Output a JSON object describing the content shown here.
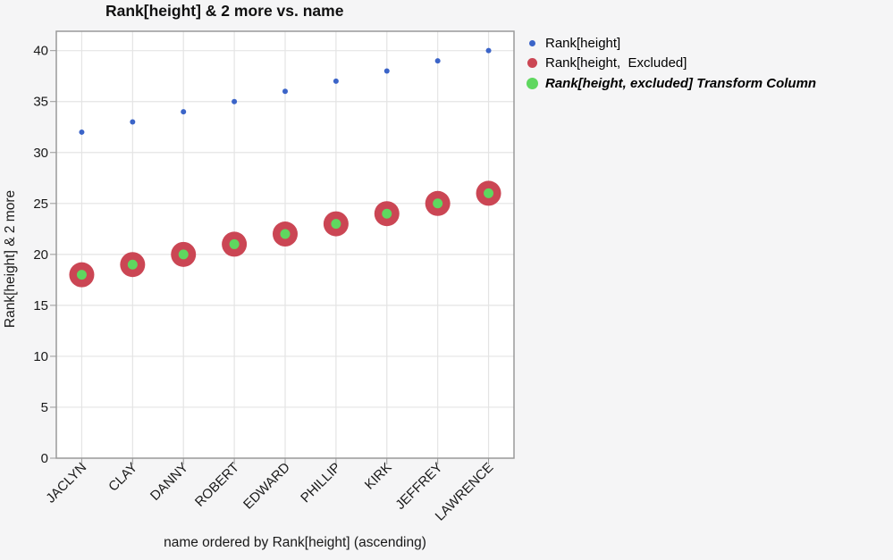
{
  "title": "Rank[height] & 2 more vs. name",
  "chart_data": {
    "type": "scatter",
    "categories": [
      "JACLYN",
      "CLAY",
      "DANNY",
      "ROBERT",
      "EDWARD",
      "PHILLIP",
      "KIRK",
      "JEFFREY",
      "LAWRENCE"
    ],
    "series": [
      {
        "name": "Rank[height]",
        "values": [
          32,
          33,
          34,
          35,
          36,
          37,
          38,
          39,
          40
        ],
        "color": "#3b64c8",
        "point_radius": 3,
        "legend_diameter": 7,
        "emphasis": false
      },
      {
        "name": "Rank[height,  Excluded]",
        "values": [
          18,
          19,
          20,
          21,
          22,
          23,
          24,
          25,
          26
        ],
        "color": "#cb4654",
        "point_radius": 14,
        "legend_diameter": 11,
        "emphasis": false
      },
      {
        "name": "Rank[height, excluded] Transform Column",
        "values": [
          18,
          19,
          20,
          21,
          22,
          23,
          24,
          25,
          26
        ],
        "color": "#5fd75f",
        "point_radius": 5.5,
        "legend_diameter": 13,
        "emphasis": true
      }
    ],
    "xlabel": "name ordered by Rank[height] (ascending)",
    "ylabel": "Rank[height] & 2 more",
    "ylim": [
      0,
      41.9
    ],
    "yticks": [
      0,
      5,
      10,
      15,
      20,
      25,
      30,
      35,
      40
    ],
    "grid": true,
    "legend_position": "right-top",
    "colors": {
      "background": "#f5f5f6",
      "plot_background": "#ffffff",
      "gridline": "#e4e4e4",
      "border": "#9a9a9a",
      "tick": "#999999",
      "text": "#191919"
    }
  }
}
